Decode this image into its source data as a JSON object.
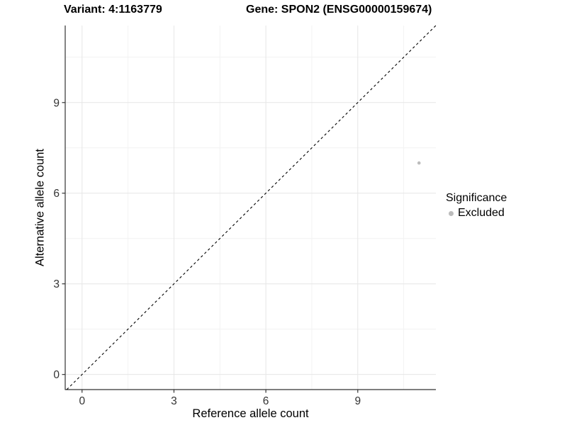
{
  "chart_data": {
    "type": "scatter",
    "title_parts": {
      "variant": "Variant: 4:1163779",
      "gene": "Gene: SPON2 (ENSG00000159674)"
    },
    "xlabel": "Reference allele count",
    "ylabel": "Alternative allele count",
    "xlim": [
      -0.55,
      11.55
    ],
    "ylim": [
      -0.5,
      11.55
    ],
    "xticks": [
      0,
      3,
      6,
      9
    ],
    "yticks": [
      0,
      3,
      6,
      9
    ],
    "minor_xticks": [
      1.5,
      4.5,
      7.5,
      10.5
    ],
    "minor_yticks": [
      1.5,
      4.5,
      7.5,
      10.5
    ],
    "grid": true,
    "series": [
      {
        "name": "Excluded",
        "color": "#bcbcbc",
        "points": [
          {
            "x": 11,
            "y": 7
          }
        ]
      }
    ],
    "reference_line": {
      "type": "identity",
      "style": "dashed",
      "color": "#000000"
    },
    "legend": {
      "title": "Significance",
      "position": "right",
      "entries": [
        {
          "label": "Excluded",
          "color": "#bcbcbc"
        }
      ]
    }
  },
  "colors": {
    "background": "#ffffff",
    "grid_major": "#e6e6e6",
    "grid_minor": "#f2f2f2",
    "axis_line": "#333333",
    "tick_mark": "#333333",
    "tick_label": "#333333",
    "title_text": "#000000",
    "excluded_point": "#bcbcbc"
  }
}
